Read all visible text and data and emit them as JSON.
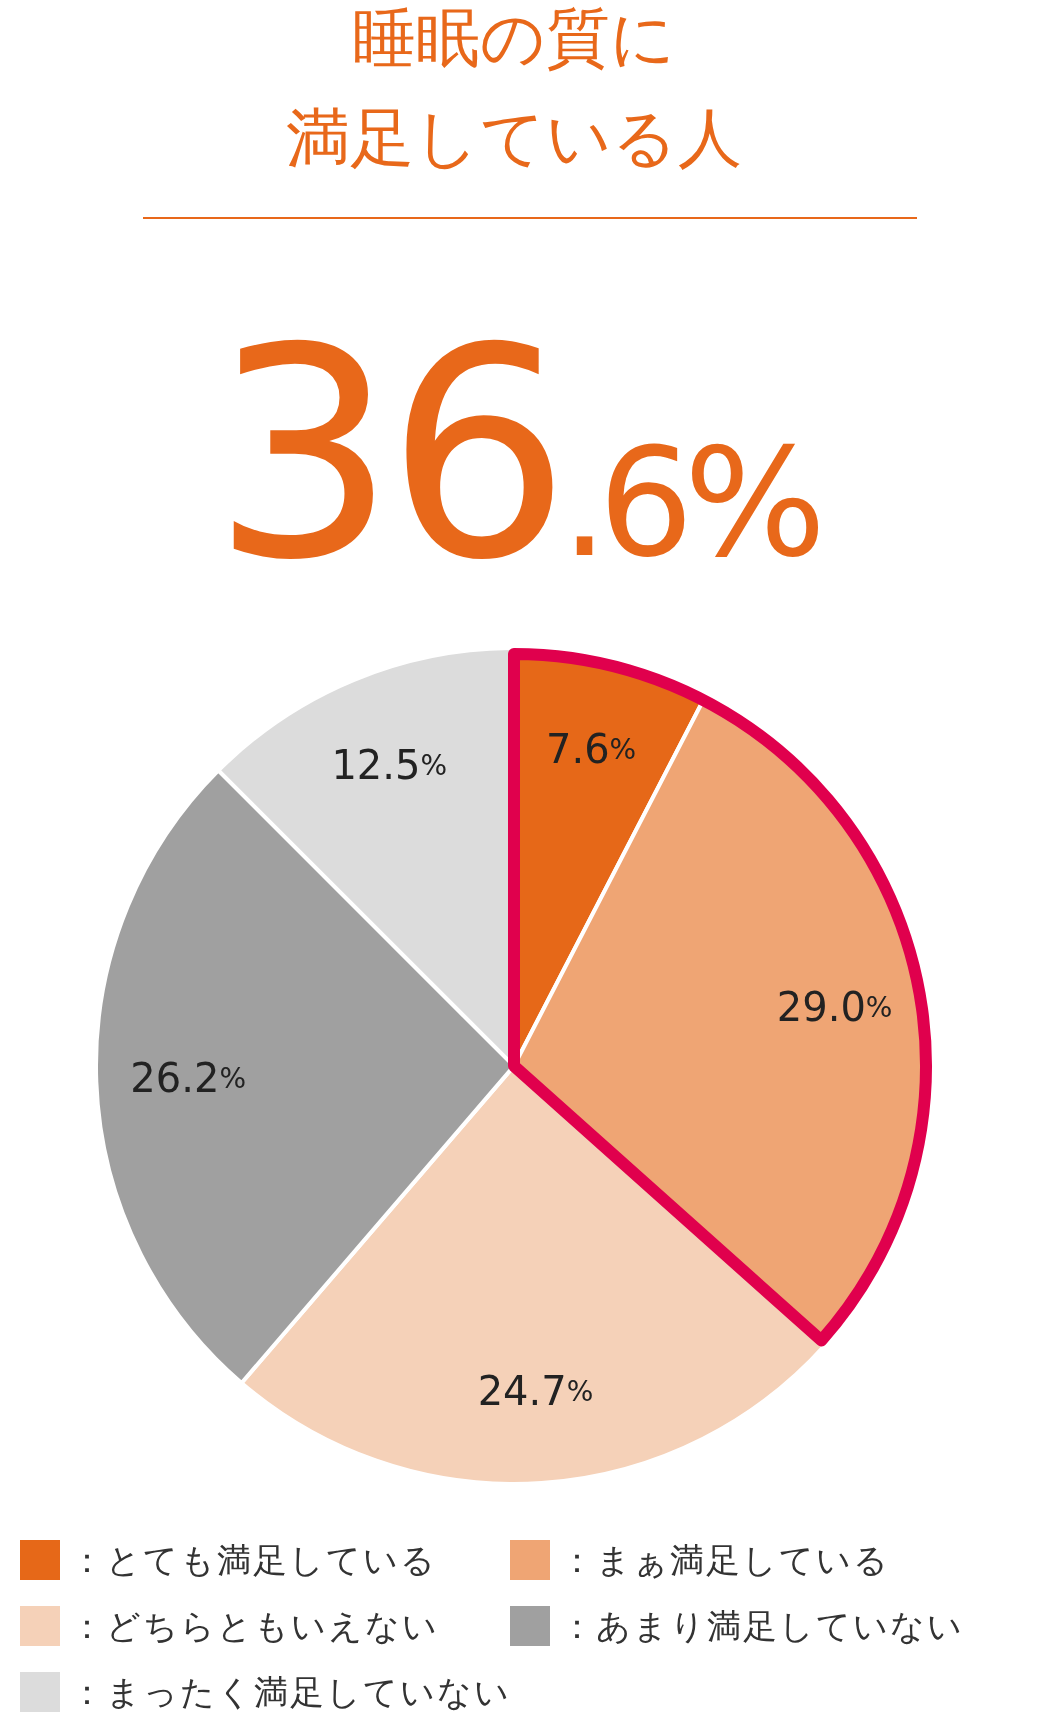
{
  "chart_data": {
    "type": "pie",
    "title": "睡眠の質に満足している人",
    "subtitle": "36.6%",
    "categories": [
      "：とても満足している",
      "：まぁ満足している",
      "：どちらともいえない",
      "：あまり満足していない",
      "：まったく満足していない"
    ],
    "values": [
      7.6,
      29.0,
      24.7,
      26.2,
      12.5
    ],
    "value_labels": [
      "7.6%",
      "29.0%",
      "24.7%",
      "26.2%",
      "12.5%"
    ],
    "colors": [
      "#e66818",
      "#efa574",
      "#f5d1b8",
      "#a0a0a0",
      "#dcdcdc"
    ],
    "legend": "bottom"
  }
}
